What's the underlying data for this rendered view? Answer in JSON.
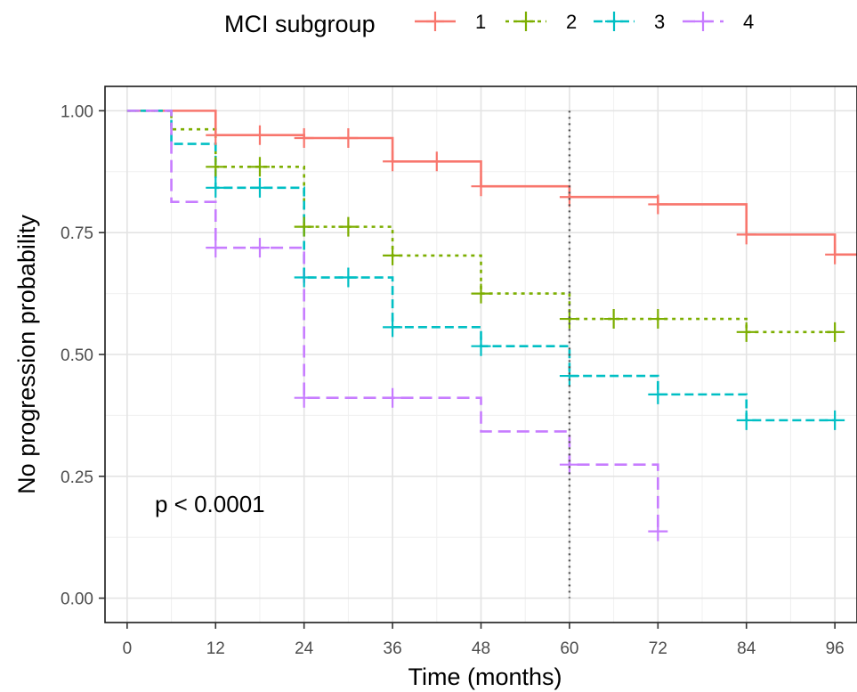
{
  "chart_data": {
    "type": "line",
    "subtype": "kaplan-meier step",
    "xlabel": "Time (months)",
    "ylabel": "No progression probability",
    "xlim": [
      -3,
      99
    ],
    "ylim": [
      -0.05,
      1.05
    ],
    "x_ticks": [
      0,
      12,
      24,
      36,
      48,
      60,
      72,
      84,
      96
    ],
    "y_ticks": [
      0,
      0.25,
      0.5,
      0.75,
      1
    ],
    "y_tick_labels": [
      "0.00",
      "0.25",
      "0.50",
      "0.75",
      "1.00"
    ],
    "grid": true,
    "legend": {
      "title": "MCI subgroup",
      "position": "top"
    },
    "annotation": "p < 0.0001",
    "reference_line": {
      "x": 60,
      "style": "dotted",
      "color": "#555555"
    },
    "series": [
      {
        "name": "1",
        "color": "#F8766D",
        "dash": "solid",
        "steps": [
          [
            0,
            1.0
          ],
          [
            12,
            0.95
          ],
          [
            24,
            0.944
          ],
          [
            36,
            0.896
          ],
          [
            48,
            0.845
          ],
          [
            60,
            0.823
          ],
          [
            72,
            0.808
          ],
          [
            84,
            0.746
          ],
          [
            96,
            0.705
          ],
          [
            99,
            0.705
          ]
        ],
        "censor": [
          [
            12,
            0.95
          ],
          [
            18,
            0.95
          ],
          [
            24,
            0.944
          ],
          [
            30,
            0.944
          ],
          [
            36,
            0.896
          ],
          [
            42,
            0.896
          ],
          [
            48,
            0.845
          ],
          [
            60,
            0.823
          ],
          [
            72,
            0.808
          ],
          [
            84,
            0.746
          ],
          [
            96,
            0.705
          ]
        ]
      },
      {
        "name": "2",
        "color": "#7CAE00",
        "dash": "dotted",
        "steps": [
          [
            0,
            1.0
          ],
          [
            6,
            0.962
          ],
          [
            12,
            0.885
          ],
          [
            24,
            0.762
          ],
          [
            36,
            0.703
          ],
          [
            48,
            0.625
          ],
          [
            60,
            0.573
          ],
          [
            84,
            0.546
          ],
          [
            96,
            0.546
          ]
        ],
        "censor": [
          [
            12,
            0.885
          ],
          [
            18,
            0.885
          ],
          [
            24,
            0.762
          ],
          [
            30,
            0.762
          ],
          [
            36,
            0.703
          ],
          [
            48,
            0.625
          ],
          [
            60,
            0.573
          ],
          [
            66,
            0.573
          ],
          [
            72,
            0.573
          ],
          [
            84,
            0.546
          ],
          [
            96,
            0.546
          ]
        ]
      },
      {
        "name": "3",
        "color": "#00BFC4",
        "dash": "dashed",
        "steps": [
          [
            0,
            1.0
          ],
          [
            6,
            0.932
          ],
          [
            12,
            0.842
          ],
          [
            24,
            0.658
          ],
          [
            36,
            0.556
          ],
          [
            48,
            0.517
          ],
          [
            60,
            0.456
          ],
          [
            72,
            0.418
          ],
          [
            84,
            0.365
          ],
          [
            96,
            0.365
          ]
        ],
        "censor": [
          [
            12,
            0.842
          ],
          [
            18,
            0.842
          ],
          [
            24,
            0.658
          ],
          [
            30,
            0.658
          ],
          [
            36,
            0.556
          ],
          [
            48,
            0.517
          ],
          [
            60,
            0.456
          ],
          [
            72,
            0.418
          ],
          [
            84,
            0.365
          ],
          [
            96,
            0.365
          ]
        ]
      },
      {
        "name": "4",
        "color": "#C77CFF",
        "dash": "longdash",
        "steps": [
          [
            0,
            1.0
          ],
          [
            6,
            0.813
          ],
          [
            12,
            0.719
          ],
          [
            24,
            0.411
          ],
          [
            48,
            0.342
          ],
          [
            60,
            0.274
          ],
          [
            72,
            0.137
          ]
        ],
        "censor": [
          [
            12,
            0.719
          ],
          [
            18,
            0.719
          ],
          [
            24,
            0.411
          ],
          [
            36,
            0.411
          ],
          [
            60,
            0.274
          ],
          [
            72,
            0.137
          ]
        ]
      }
    ]
  }
}
